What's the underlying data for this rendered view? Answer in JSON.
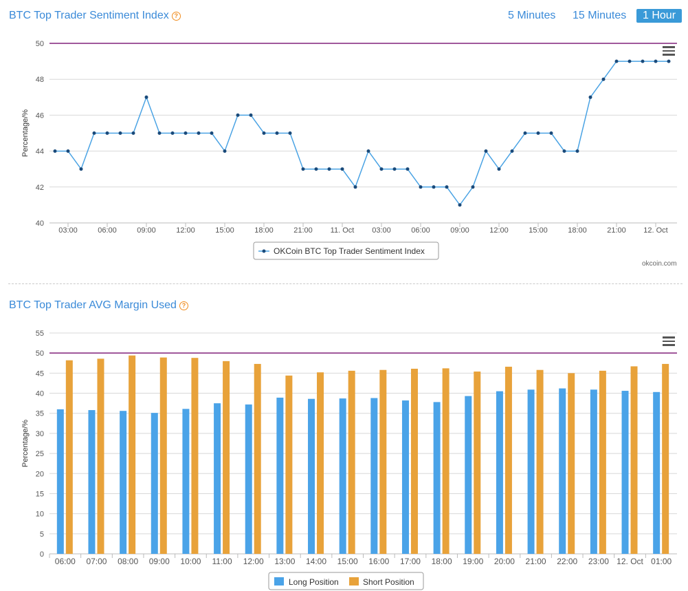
{
  "header": {
    "title": "BTC Top Trader Sentiment Index",
    "ranges": [
      "5 Minutes",
      "15 Minutes",
      "1 Hour"
    ],
    "active_range": "1 Hour"
  },
  "credit": "okcoin.com",
  "section2": {
    "title": "BTC Top Trader AVG Margin Used"
  },
  "colors": {
    "line": "#4aa3e4",
    "marker": "#1a4a7a",
    "long": "#4aa3e8",
    "short": "#e8a23a",
    "threshold": "#80207a"
  },
  "chart_data": [
    {
      "type": "line",
      "ylabel": "Percentage/%",
      "ylim": [
        40,
        50
      ],
      "yticks": [
        "40",
        "42",
        "44",
        "46",
        "48",
        "50"
      ],
      "xticks": [
        "03:00",
        "06:00",
        "09:00",
        "12:00",
        "15:00",
        "18:00",
        "21:00",
        "11. Oct",
        "03:00",
        "06:00",
        "09:00",
        "12:00",
        "15:00",
        "18:00",
        "21:00",
        "12. Oct"
      ],
      "reference_line": 50,
      "series": [
        {
          "name": "OKCoin BTC Top Trader Sentiment Index",
          "values": [
            44,
            44,
            43,
            45,
            45,
            45,
            45,
            47,
            45,
            45,
            45,
            45,
            45,
            44,
            46,
            46,
            45,
            45,
            45,
            43,
            43,
            43,
            43,
            42,
            44,
            43,
            43,
            43,
            42,
            42,
            42,
            41,
            42,
            44,
            43,
            44,
            45,
            45,
            45,
            44,
            44,
            47,
            48,
            49,
            49,
            49,
            49,
            49
          ]
        }
      ],
      "grid": true,
      "legend": "bottom-center"
    },
    {
      "type": "bar",
      "ylabel": "Percentage/%",
      "ylim": [
        0,
        55
      ],
      "yticks": [
        "0",
        "5",
        "10",
        "15",
        "20",
        "25",
        "30",
        "35",
        "40",
        "45",
        "50",
        "55"
      ],
      "categories": [
        "06:00",
        "07:00",
        "08:00",
        "09:00",
        "10:00",
        "11:00",
        "12:00",
        "13:00",
        "14:00",
        "15:00",
        "16:00",
        "17:00",
        "18:00",
        "19:00",
        "20:00",
        "21:00",
        "22:00",
        "23:00",
        "12. Oct",
        "01:00"
      ],
      "reference_line": 50,
      "series": [
        {
          "name": "Long Position",
          "values": [
            36.0,
            35.8,
            35.6,
            35.1,
            36.1,
            37.5,
            37.2,
            38.9,
            38.6,
            38.7,
            38.8,
            38.2,
            37.8,
            39.3,
            40.5,
            40.9,
            41.2,
            40.9,
            40.6,
            40.3
          ]
        },
        {
          "name": "Short Position",
          "values": [
            48.2,
            48.6,
            49.4,
            48.9,
            48.8,
            48.0,
            47.3,
            44.4,
            45.2,
            45.6,
            45.8,
            46.1,
            46.2,
            45.4,
            46.6,
            45.8,
            45.0,
            45.6,
            46.7,
            47.3
          ]
        }
      ],
      "grid": true,
      "legend": "bottom-center"
    }
  ]
}
